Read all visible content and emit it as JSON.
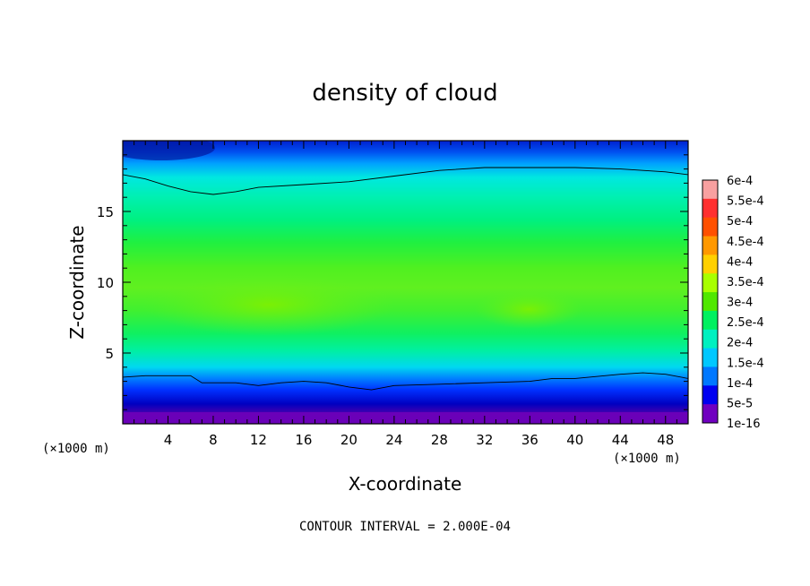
{
  "chart_data": {
    "type": "heatmap",
    "title": "density of cloud",
    "xlabel": "X-coordinate",
    "ylabel": "Z-coordinate",
    "x_unit": "(×1000 m)",
    "z_unit": "(×1000 m)",
    "xlim": [
      0,
      50
    ],
    "ylim": [
      0,
      20
    ],
    "x_ticks": [
      4,
      8,
      12,
      16,
      20,
      24,
      28,
      32,
      36,
      40,
      44,
      48
    ],
    "y_ticks": [
      5,
      10,
      15
    ],
    "contour_interval_text": "CONTOUR INTERVAL = 2.000E-04",
    "colorbar": {
      "labels": [
        "6e-4",
        "5.5e-4",
        "5e-4",
        "4.5e-4",
        "4e-4",
        "3.5e-4",
        "3e-4",
        "2.5e-4",
        "2e-4",
        "1.5e-4",
        "1e-4",
        "5e-5",
        "1e-16"
      ],
      "colors": [
        "#f8a0a0",
        "#ff3030",
        "#ff5000",
        "#ff9800",
        "#ffd000",
        "#a8ff00",
        "#50e800",
        "#00f060",
        "#00f0c0",
        "#00c8ff",
        "#0078ff",
        "#0000f0",
        "#7000c0"
      ]
    },
    "contours": [
      {
        "level": 0.0002,
        "side": "top",
        "x": [
          0,
          2,
          4,
          6,
          8,
          10,
          12,
          16,
          20,
          24,
          28,
          32,
          36,
          40,
          44,
          48,
          50
        ],
        "z": [
          17.6,
          17.3,
          16.8,
          16.4,
          16.2,
          16.4,
          16.7,
          16.9,
          17.1,
          17.5,
          17.9,
          18.1,
          18.1,
          18.1,
          18.0,
          17.8,
          17.6
        ]
      },
      {
        "level": 0.0002,
        "side": "bottom",
        "x": [
          0,
          2,
          4,
          6,
          7,
          8,
          10,
          12,
          14,
          16,
          18,
          20,
          22,
          24,
          28,
          32,
          36,
          38,
          40,
          44,
          46,
          48,
          50
        ],
        "z": [
          3.3,
          3.4,
          3.4,
          3.4,
          2.9,
          2.9,
          2.9,
          2.7,
          2.9,
          3.0,
          2.9,
          2.6,
          2.4,
          2.7,
          2.8,
          2.9,
          3.0,
          3.2,
          3.2,
          3.5,
          3.6,
          3.5,
          3.2
        ]
      }
    ]
  }
}
